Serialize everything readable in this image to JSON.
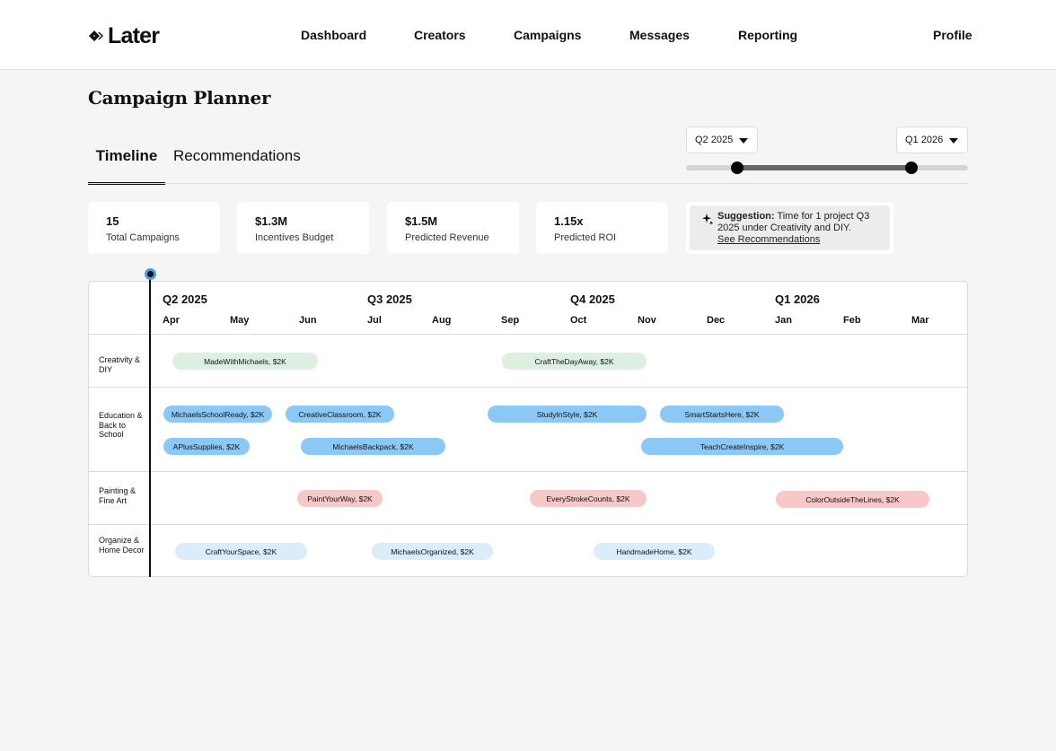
{
  "brand": {
    "logo_text": "Later"
  },
  "nav": {
    "items": [
      "Dashboard",
      "Creators",
      "Campaigns",
      "Messages",
      "Reporting"
    ],
    "profile": "Profile"
  },
  "page": {
    "title": "Campaign Planner"
  },
  "tabs": {
    "timeline": "Timeline",
    "recommendations": "Recommendations"
  },
  "range": {
    "start": "Q2 2025",
    "end": "Q1 2026"
  },
  "stats": [
    {
      "value": "15",
      "label": "Total Campaigns"
    },
    {
      "value": "$1.3M",
      "label": "Incentives Budget"
    },
    {
      "value": "$1.5M",
      "label": "Predicted Revenue"
    },
    {
      "value": "1.15x",
      "label": "Predicted ROI"
    }
  ],
  "suggestion": {
    "prefix": "Suggestion:",
    "text": " Time for 1 project Q3 2025 under Creativity and DIY.",
    "link": "See Recommendations"
  },
  "timeline": {
    "quarters": [
      "Q2 2025",
      "Q3 2025",
      "Q4 2025",
      "Q1 2026"
    ],
    "months": [
      "Apr",
      "May",
      "Jun",
      "Jul",
      "Aug",
      "Sep",
      "Oct",
      "Nov",
      "Dec",
      "Jan",
      "Feb",
      "Mar"
    ],
    "categories": [
      "Creativity & DIY",
      "Education & Back to School",
      "Painting & Fine Art",
      "Organize & Home Decor"
    ],
    "campaigns": [
      {
        "label": "MadeWithMichaels, $2K"
      },
      {
        "label": "CraftTheDayAway, $2K"
      },
      {
        "label": "MichaelsSchoolReady, $2K"
      },
      {
        "label": "CreativeClassroom, $2K"
      },
      {
        "label": "StudyInStyle, $2K"
      },
      {
        "label": "SmartStartsHere, $2K"
      },
      {
        "label": "APlusSupplies, $2K"
      },
      {
        "label": "MichaelsBackpack, $2K"
      },
      {
        "label": "TeachCreateInspire, $2K"
      },
      {
        "label": "PaintYourWay, $2K"
      },
      {
        "label": "EveryStrokeCounts, $2K"
      },
      {
        "label": "ColorOutsideTheLines, $2K"
      },
      {
        "label": "CraftYourSpace, $2K"
      },
      {
        "label": "MichaelsOrganized, $2K"
      },
      {
        "label": "HandmadeHome, $2K"
      }
    ]
  },
  "colors": {
    "creativity": "#dcefe1",
    "education": "#8cc8f6",
    "painting": "#f7c8c8",
    "organize": "#dbedfb",
    "today_marker": "#4d9be6"
  }
}
